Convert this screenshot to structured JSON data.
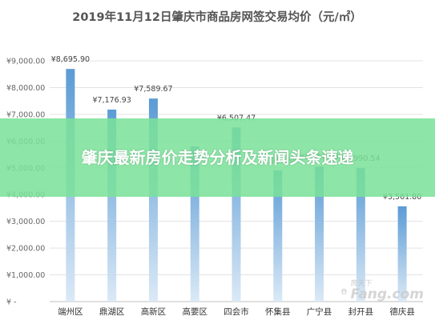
{
  "headline": "肇庆最新房价走势分析及新闻头条速递",
  "watermark": {
    "small": "房天下",
    "big": "Fang.com",
    "icon": "house-logo"
  },
  "colors": {
    "bar_top": "#5b9bd5",
    "bar_bottom": "#dbe9f6",
    "overlay": "#7ae299"
  },
  "chart_data": {
    "type": "bar",
    "title": "2019年11月12日肇庆市商品房网签交易均价（元/㎡）",
    "xlabel": "",
    "ylabel": "",
    "ylim": [
      0,
      9000
    ],
    "yticks": [
      0,
      1000,
      2000,
      3000,
      4000,
      5000,
      6000,
      7000,
      8000,
      9000
    ],
    "ytick_labels": [
      "¥ -",
      "¥1,000.00",
      "¥2,000.00",
      "¥3,000.00",
      "¥4,000.00",
      "¥5,000.00",
      "¥6,000.00",
      "¥7,000.00",
      "¥8,000.00",
      "¥9,000.00"
    ],
    "categories": [
      "端州区",
      "鼎湖区",
      "高新区",
      "高要区",
      "四会市",
      "怀集县",
      "广宁县",
      "封开县",
      "德庆县"
    ],
    "values": [
      8695.9,
      7176.93,
      7589.67,
      5800,
      6507.47,
      4910.88,
      5050,
      4990.54,
      3561.8
    ],
    "data_labels": [
      "¥8,695.90",
      "¥7,176.93",
      "¥7,589.67",
      "",
      "¥6,507.47",
      "¥4,910.88",
      "¥5,050.00",
      "¥4,990.54",
      "¥3,561.80"
    ],
    "grid": true,
    "legend": "none"
  }
}
